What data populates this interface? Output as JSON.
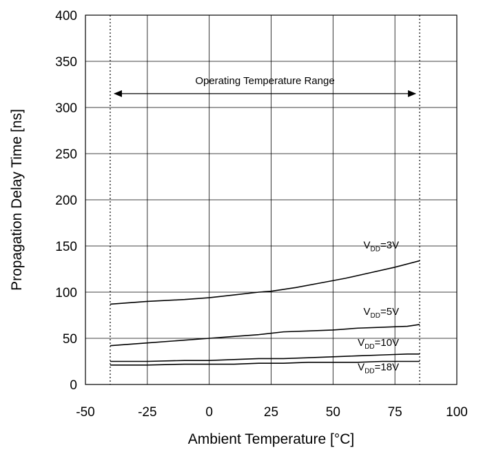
{
  "chart_data": {
    "type": "line",
    "title": "",
    "xlabel": "Ambient Temperature [°C]",
    "ylabel": "Propagation Delay Time [ns]",
    "xlim": [
      -50,
      100
    ],
    "ylim": [
      0,
      400
    ],
    "x_ticks": [
      -50,
      -25,
      0,
      25,
      50,
      75,
      100
    ],
    "y_ticks": [
      0,
      50,
      100,
      150,
      200,
      250,
      300,
      350,
      400
    ],
    "grid": true,
    "series": [
      {
        "label_main": "V",
        "label_sub": "DD",
        "label_rest": "=3V",
        "x": [
          -40,
          -25,
          -10,
          0,
          10,
          20,
          25,
          35,
          45,
          55,
          65,
          75,
          85
        ],
        "y": [
          87,
          90,
          92,
          94,
          97,
          100,
          101,
          105,
          110,
          115,
          121,
          127,
          134
        ]
      },
      {
        "label_main": "V",
        "label_sub": "DD",
        "label_rest": "=5V",
        "x": [
          -40,
          -25,
          -10,
          0,
          10,
          20,
          30,
          40,
          50,
          60,
          70,
          80,
          85
        ],
        "y": [
          42,
          45,
          48,
          50,
          52,
          54,
          57,
          58,
          59,
          61,
          62,
          63,
          65
        ]
      },
      {
        "label_main": "V",
        "label_sub": "DD",
        "label_rest": "=10V",
        "x": [
          -40,
          -25,
          -10,
          0,
          10,
          20,
          30,
          40,
          50,
          60,
          70,
          80,
          85
        ],
        "y": [
          25,
          25,
          26,
          26,
          27,
          28,
          28,
          29,
          30,
          31,
          32,
          33,
          33
        ]
      },
      {
        "label_main": "V",
        "label_sub": "DD",
        "label_rest": "=18V",
        "x": [
          -40,
          -25,
          -10,
          0,
          10,
          20,
          30,
          40,
          50,
          60,
          70,
          80,
          85
        ],
        "y": [
          21,
          21,
          22,
          22,
          22,
          23,
          23,
          24,
          24,
          24,
          25,
          25,
          25
        ]
      }
    ],
    "annotations": [
      {
        "text": "Operating Temperature Range",
        "x_from": -40,
        "x_to": 85,
        "y": 315
      }
    ],
    "reference_lines_x": [
      -40,
      85
    ]
  }
}
